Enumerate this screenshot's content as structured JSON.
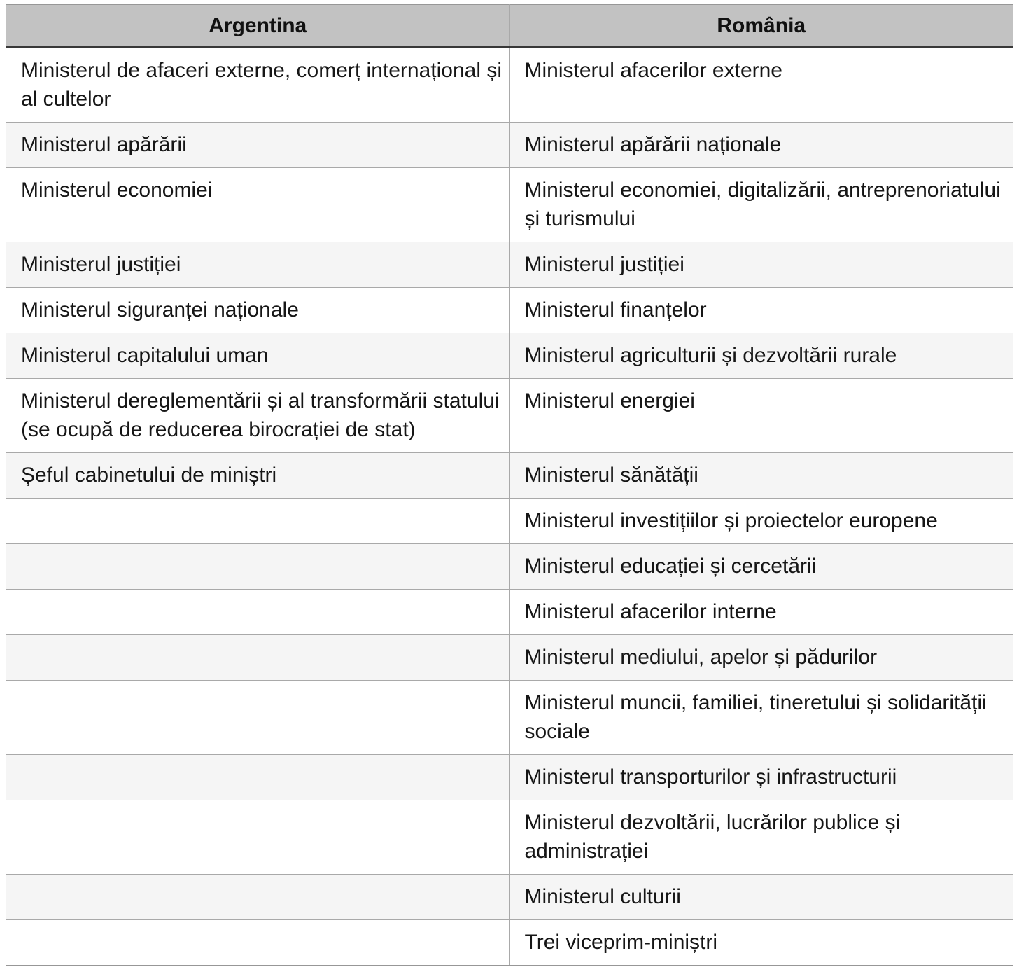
{
  "table": {
    "headers": [
      "Argentina",
      "România"
    ],
    "rows": [
      {
        "argentina": "Ministerul de afaceri externe, comerț internațional și\nal cultelor",
        "romania": "Ministerul afacerilor externe"
      },
      {
        "argentina": "Ministerul apărării",
        "romania": "Ministerul apărării naționale"
      },
      {
        "argentina": "Ministerul economiei",
        "romania": "Ministerul economiei, digitalizării, antreprenoriatului\nși turismului"
      },
      {
        "argentina": "Ministerul justiției",
        "romania": "Ministerul justiției"
      },
      {
        "argentina": "Ministerul siguranței naționale",
        "romania": "Ministerul finanțelor"
      },
      {
        "argentina": "Ministerul capitalului uman",
        "romania": "Ministerul agriculturii și dezvoltării rurale"
      },
      {
        "argentina": "Ministerul dereglementării și al transformării statului\n(se ocupă de reducerea birocrației de stat)",
        "romania": "Ministerul energiei"
      },
      {
        "argentina": "Șeful cabinetului de miniștri",
        "romania": "Ministerul sănătății"
      },
      {
        "argentina": "",
        "romania": "Ministerul investițiilor și proiectelor europene"
      },
      {
        "argentina": "",
        "romania": "Ministerul educației și cercetării"
      },
      {
        "argentina": "",
        "romania": "Ministerul afacerilor interne"
      },
      {
        "argentina": "",
        "romania": "Ministerul mediului, apelor și pădurilor"
      },
      {
        "argentina": "",
        "romania": "Ministerul muncii, familiei, tineretului și solidarității\nsociale"
      },
      {
        "argentina": "",
        "romania": "Ministerul transporturilor și infrastructurii"
      },
      {
        "argentina": "",
        "romania": "Ministerul dezvoltării, lucrărilor publice și\nadministrației"
      },
      {
        "argentina": "",
        "romania": "Ministerul culturii"
      },
      {
        "argentina": "",
        "romania": "Trei viceprim-miniștri"
      }
    ]
  },
  "colors": {
    "header_bg": "#c2c2c2",
    "row_alt_bg": "#f5f5f5",
    "row_bg": "#ffffff",
    "grid_line": "#a9a9a9",
    "outer_border": "#979797",
    "header_underline": "#383838",
    "text": "#161616"
  }
}
